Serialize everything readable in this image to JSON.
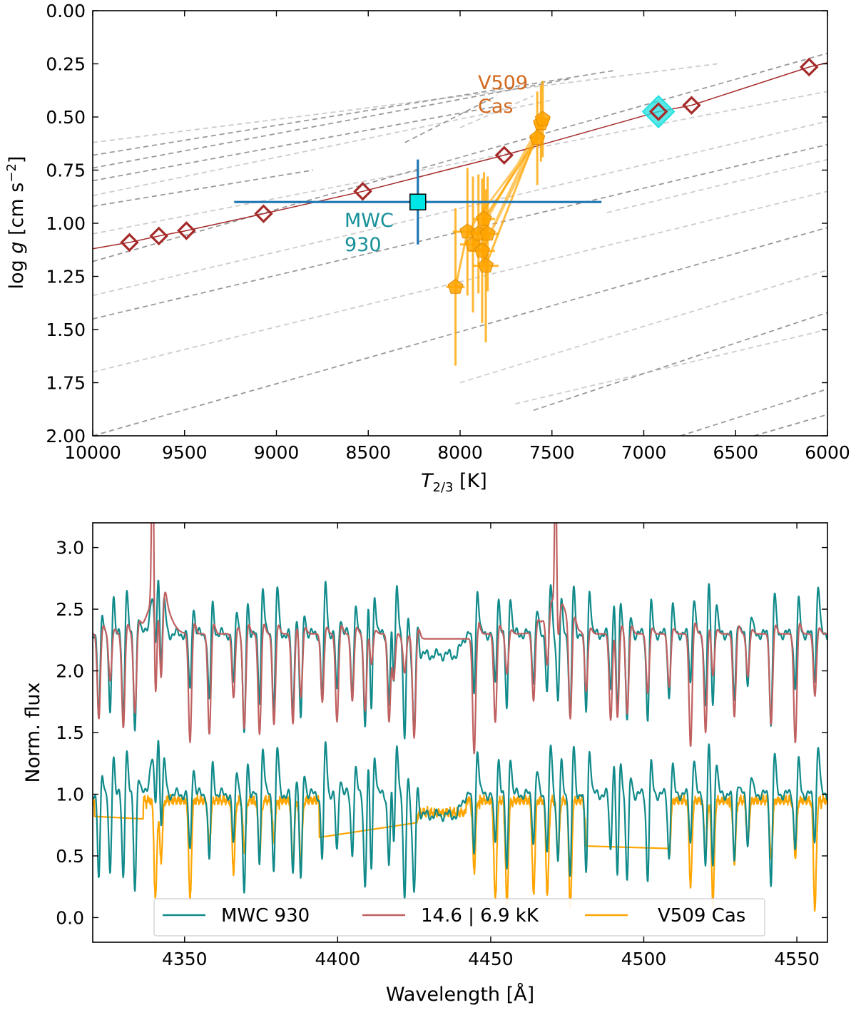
{
  "colors": {
    "track_dark": "#999999",
    "track_light": "#cccccc",
    "model_line": "#a52a2a",
    "model_marker": "#a52a2a",
    "highlight": "#22e0e0",
    "mwc": "#1f77b4",
    "mwc_marker": "#00e5e5",
    "mwc_text": "#17909a",
    "v509": "#ffa500",
    "v509_text": "#d2691e",
    "spec_mwc": "#108a8a",
    "spec_model": "#c06060",
    "spec_v509": "#ffa500"
  },
  "chart_data": [
    {
      "type": "scatter",
      "title": "",
      "xlabel": "T_{2/3} [K]",
      "xlabel_main": "T",
      "xlabel_sub": "2/3",
      "xlabel_unit": " [K]",
      "ylabel": "log g [cm s^-2]",
      "ylabel_pre": "log ",
      "ylabel_italic": "g",
      "ylabel_unit": " [cm s",
      "ylabel_sup": "−2",
      "ylabel_close": "]",
      "xlim": [
        10000,
        6000
      ],
      "ylim": [
        2.0,
        0.0
      ],
      "xticks": [
        10000,
        9500,
        9000,
        8500,
        8000,
        7500,
        7000,
        6500,
        6000
      ],
      "xtick_labels": [
        "10000",
        "9500",
        "9000",
        "8500",
        "8000",
        "7500",
        "7000",
        "6500",
        "6000"
      ],
      "yticks": [
        0.0,
        0.25,
        0.5,
        0.75,
        1.0,
        1.25,
        1.5,
        1.75,
        2.0
      ],
      "ytick_labels": [
        "0.00",
        "0.25",
        "0.50",
        "0.75",
        "1.00",
        "1.25",
        "1.50",
        "1.75",
        "2.00"
      ],
      "tracks_dark": [
        [
          [
            10000,
            0.68
          ],
          [
            7150,
            0.28
          ]
        ],
        [
          [
            10000,
            0.8
          ],
          [
            7800,
            0.45
          ]
        ],
        [
          [
            10000,
            0.92
          ],
          [
            8800,
            0.75
          ]
        ],
        [
          [
            10000,
            1.18
          ],
          [
            6000,
            0.2
          ]
        ],
        [
          [
            10000,
            1.45
          ],
          [
            6000,
            0.63
          ]
        ],
        [
          [
            10000,
            2.0
          ],
          [
            6000,
            1.02
          ]
        ],
        [
          [
            7600,
            1.88
          ],
          [
            6000,
            1.42
          ]
        ],
        [
          [
            6800,
            2.0
          ],
          [
            6000,
            1.78
          ]
        ],
        [
          [
            6400,
            2.0
          ],
          [
            6000,
            1.9
          ]
        ],
        [
          [
            8300,
            0.62
          ],
          [
            7800,
            0.4
          ]
        ],
        [
          [
            10000,
            0.74
          ],
          [
            7400,
            0.32
          ]
        ]
      ],
      "tracks_light": [
        [
          [
            10000,
            0.62
          ],
          [
            6600,
            0.25
          ]
        ],
        [
          [
            10000,
            0.87
          ],
          [
            7500,
            0.42
          ]
        ],
        [
          [
            10000,
            1.05
          ],
          [
            6000,
            0.38
          ]
        ],
        [
          [
            10000,
            1.34
          ],
          [
            6000,
            0.52
          ]
        ],
        [
          [
            10000,
            1.7
          ],
          [
            6000,
            0.85
          ]
        ],
        [
          [
            8000,
            1.75
          ],
          [
            6000,
            1.22
          ]
        ],
        [
          [
            7700,
            1.85
          ],
          [
            6000,
            1.5
          ]
        ],
        [
          [
            8000,
            0.55
          ],
          [
            7600,
            0.4
          ]
        ],
        [
          [
            7200,
            0.95
          ],
          [
            6000,
            0.7
          ]
        ]
      ],
      "model_track": [
        [
          10000,
          1.12
        ],
        [
          9800,
          1.09
        ],
        [
          9640,
          1.06
        ],
        [
          9490,
          1.035
        ],
        [
          9070,
          0.955
        ],
        [
          8530,
          0.85
        ],
        [
          7760,
          0.68
        ],
        [
          6920,
          0.475
        ],
        [
          6740,
          0.445
        ],
        [
          6100,
          0.265
        ],
        [
          6000,
          0.245
        ]
      ],
      "model_points": {
        "name": "models",
        "x": [
          9800,
          9640,
          9490,
          9070,
          8530,
          7760,
          6920,
          6740,
          6100
        ],
        "y": [
          1.09,
          1.06,
          1.035,
          0.955,
          0.85,
          0.68,
          0.475,
          0.445,
          0.265
        ]
      },
      "highlight_point": {
        "x": 6920,
        "y": 0.475
      },
      "mwc930": {
        "name": "MWC 930",
        "x": 8230,
        "y": 0.9,
        "xerr": 1000,
        "yerr": 0.2
      },
      "v509cas": {
        "name": "V509 Cas",
        "x": [
          8025,
          7960,
          7930,
          7900,
          7880,
          7870,
          7860,
          7850,
          7580,
          7560,
          7550
        ],
        "y": [
          1.3,
          1.04,
          1.1,
          1.05,
          1.13,
          0.98,
          1.2,
          1.05,
          0.6,
          0.53,
          0.51
        ],
        "xerr": [
          50,
          80,
          70,
          60,
          70,
          60,
          70,
          60,
          40,
          40,
          40
        ],
        "yerr": [
          0.37,
          0.3,
          0.32,
          0.28,
          0.34,
          0.22,
          0.36,
          0.27,
          0.22,
          0.18,
          0.18
        ]
      },
      "annotations": {
        "mwc_line1": "MWC",
        "mwc_line2": "930",
        "v509_line1": "V509",
        "v509_line2": "Cas"
      }
    },
    {
      "type": "line",
      "title": "",
      "xlabel": "Wavelength [Å]",
      "ylabel": "Norm. flux",
      "xlim": [
        4320,
        4560
      ],
      "ylim": [
        -0.2,
        3.2
      ],
      "xticks": [
        4350,
        4400,
        4450,
        4500,
        4550
      ],
      "xtick_labels": [
        "4350",
        "4400",
        "4450",
        "4500",
        "4550"
      ],
      "yticks": [
        0.0,
        0.5,
        1.0,
        1.5,
        2.0,
        2.5,
        3.0
      ],
      "ytick_labels": [
        "0.0",
        "0.5",
        "1.0",
        "1.5",
        "2.0",
        "2.5",
        "3.0"
      ],
      "absorption_lines": [
        4322.0,
        4325.7,
        4330.0,
        4333.8,
        4340.5,
        4342.3,
        4351.8,
        4358.1,
        4366.0,
        4369.5,
        4374.5,
        4379.2,
        4385.4,
        4388.0,
        4395.0,
        4399.8,
        4404.8,
        4409.0,
        4411.0,
        4416.8,
        4418.3,
        4421.9,
        4425.0,
        4444.6,
        4451.5,
        4455.3,
        4464.0,
        4468.5,
        4472.0,
        4476.0,
        4481.2,
        4489.2,
        4491.4,
        4494.6,
        4501.3,
        4508.3,
        4515.3,
        4520.2,
        4522.6,
        4529.6,
        4534.0,
        4541.6,
        4549.5,
        4555.9
      ],
      "series": [
        {
          "name": "MWC 930",
          "offset_upper": 1.3,
          "baseline": 1.0
        },
        {
          "name": "14.6 | 6.9 kK",
          "offset": 1.3,
          "baseline": 1.0
        },
        {
          "name": "V509 Cas",
          "baseline": 1.0,
          "gaps": [
            [
              4320.5,
              4336.5,
              0.82
            ],
            [
              4394.0,
              4426.0,
              0.65
            ],
            [
              4481.0,
              4508.0,
              0.58
            ]
          ]
        }
      ],
      "legend": [
        "MWC 930",
        "14.6 | 6.9 kK",
        "V509 Cas"
      ],
      "legend_loc": "lower center"
    }
  ]
}
